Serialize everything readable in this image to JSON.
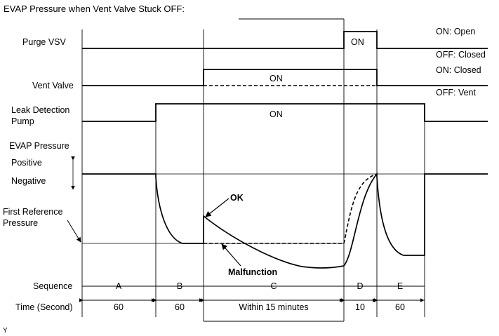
{
  "title": "EVAP Pressure when Vent Valve Stuck OFF:",
  "rows": {
    "purge_vsv": "Purge VSV",
    "vent_valve": "Vent Valve",
    "leak_pump_line1": "Leak Detection",
    "leak_pump_line2": "Pump",
    "evap_pressure": "EVAP Pressure",
    "positive": "Positive",
    "negative": "Negative",
    "first_ref_line1": "First Reference",
    "first_ref_line2": "Pressure",
    "sequence": "Sequence",
    "time": "Time (Second)"
  },
  "states": {
    "purge_on": "ON",
    "vent_on": "ON",
    "pump_on": "ON",
    "on_open": "ON: Open",
    "off_closed": "OFF: Closed",
    "on_closed": "ON: Closed",
    "off_vent": "OFF: Vent"
  },
  "annotations": {
    "ok": "OK",
    "malfunction": "Malfunction"
  },
  "sequence": [
    "A",
    "B",
    "C",
    "D",
    "E"
  ],
  "durations": [
    "60",
    "60",
    "Within 15 minutes",
    "10",
    "60"
  ],
  "footer_code": "Y"
}
